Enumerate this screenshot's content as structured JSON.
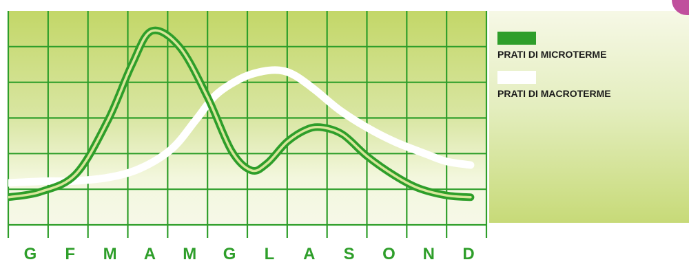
{
  "chart_data": {
    "type": "line",
    "categories": [
      "G",
      "F",
      "M",
      "A",
      "M",
      "G",
      "L",
      "A",
      "S",
      "O",
      "N",
      "D"
    ],
    "ylim": [
      0,
      100
    ],
    "grid": true,
    "legend_position": "right",
    "series": [
      {
        "name": "PRATI DI MICROTERME",
        "color": "#2e9e2a",
        "x": [
          0,
          0.8,
          1.7,
          2.5,
          3.1,
          3.6,
          4.3,
          5.0,
          5.6,
          6.1,
          6.5,
          7.0,
          7.5,
          7.9,
          8.4,
          9.0,
          9.7,
          10.3,
          11.0,
          11.6
        ],
        "values": [
          2,
          5,
          15,
          45,
          76,
          95,
          86,
          58,
          28,
          17,
          21,
          33,
          40,
          41,
          37,
          25,
          14,
          7,
          3,
          2
        ]
      },
      {
        "name": "PRATI DI MACROTERME",
        "color": "#ffffff",
        "x": [
          0,
          1.0,
          1.6,
          2.5,
          3.3,
          4.1,
          4.7,
          5.2,
          5.8,
          6.3,
          6.8,
          7.2,
          7.7,
          8.3,
          9.0,
          9.7,
          10.5,
          11.0,
          11.6
        ],
        "values": [
          10,
          11,
          11,
          13,
          18,
          29,
          45,
          59,
          68,
          72,
          73,
          70,
          62,
          51,
          41,
          33,
          26,
          22,
          20
        ]
      }
    ]
  }
}
